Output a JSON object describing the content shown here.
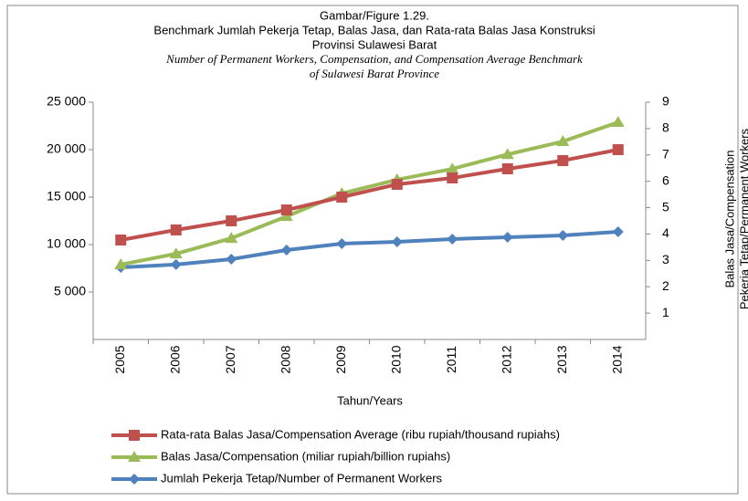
{
  "chart_data": {
    "type": "line",
    "title": "Gambar/Figure 1.29.",
    "subtitle": "Benchmark Jumlah Pekerja Tetap, Balas Jasa, dan Rata-rata Balas Jasa Konstruksi",
    "subtitle_2": "Provinsi Sulawesi Barat",
    "subtitle_en": "Number of Permanent Workers, Compensation, and Compensation Average Benchmark",
    "subtitle_en_2": "of Sulawesi Barat Province",
    "x_label": "Tahun/Years",
    "y2_label": "Balas Jasa/Compensation",
    "y2_label_2": "Pekerja Tetap/Permanent Workers",
    "categories": [
      "2005",
      "2006",
      "2007",
      "2008",
      "2009",
      "2010",
      "2011",
      "2012",
      "2013",
      "2014"
    ],
    "ylim": [
      0,
      25000
    ],
    "yticks": [
      {
        "value": 5000,
        "label": "5 000"
      },
      {
        "value": 10000,
        "label": "10 000"
      },
      {
        "value": 15000,
        "label": "15 000"
      },
      {
        "value": 20000,
        "label": "20 000"
      },
      {
        "value": 25000,
        "label": "25 000"
      }
    ],
    "y2lim": [
      0,
      9
    ],
    "y2ticks": [
      1,
      2,
      3,
      4,
      5,
      6,
      7,
      8,
      9
    ],
    "series": [
      {
        "name": "Rata-rata Balas Jasa/Compensation Average (ribu rupiah/thousand rupiahs)",
        "color": "#c0504d",
        "marker": "square",
        "values": [
          10480,
          11540,
          12500,
          13650,
          15000,
          16350,
          17020,
          17980,
          18850,
          20000
        ]
      },
      {
        "name": "Balas Jasa/Compensation (miliar rupiah/billion rupiahs)",
        "color": "#9bbb59",
        "marker": "triangle",
        "axis": "y2",
        "values": [
          2.84,
          3.25,
          3.84,
          4.67,
          5.54,
          6.06,
          6.47,
          7.02,
          7.51,
          8.24
        ]
      },
      {
        "name": "Jumlah Pekerja Tetap/Number of Permanent Workers",
        "color": "#4f81bd",
        "marker": "diamond",
        "values": [
          7600,
          7900,
          8460,
          9420,
          10100,
          10290,
          10580,
          10770,
          10960,
          11350
        ]
      }
    ]
  }
}
